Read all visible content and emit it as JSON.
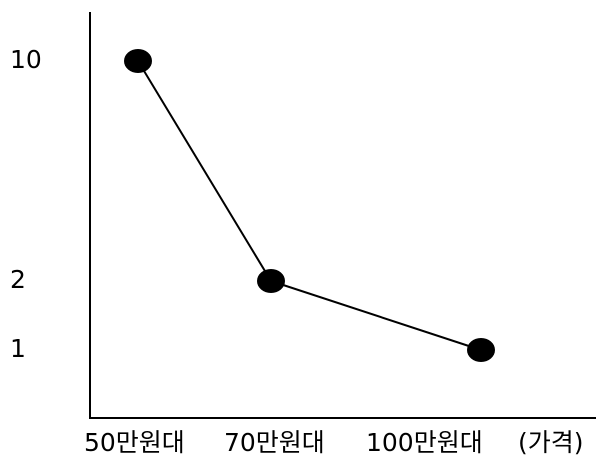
{
  "chart_data": {
    "type": "line",
    "categories": [
      "50만원대",
      "70만원대",
      "100만원대"
    ],
    "x_unit_label": "(가격)",
    "y_tick_labels": [
      "10",
      "2",
      "1"
    ],
    "series": [
      {
        "values": [
          10,
          2,
          1
        ]
      }
    ],
    "ylim": [
      0,
      11
    ],
    "grid": false,
    "legend": "none",
    "marker": "filled-circle",
    "colors": {
      "line": "#000000",
      "marker": "#000000",
      "axis": "#000000"
    }
  }
}
